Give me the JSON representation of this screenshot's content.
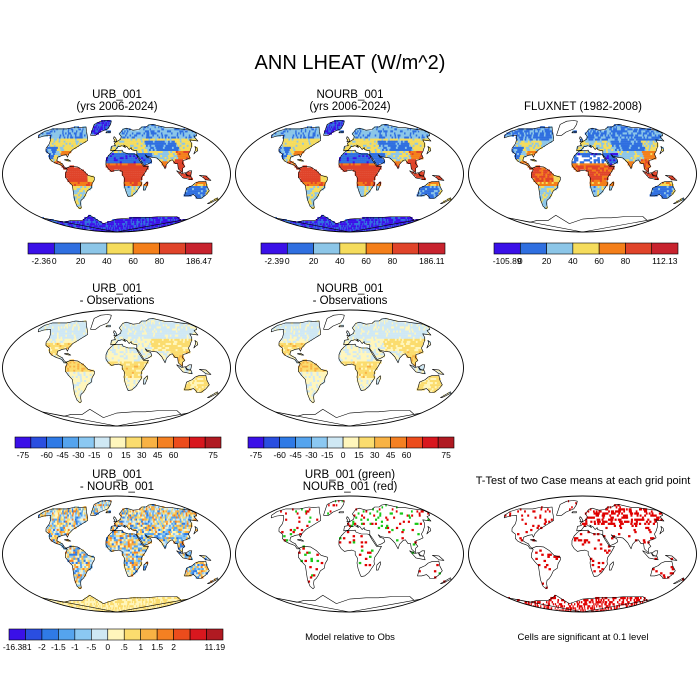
{
  "figure": {
    "title": "ANN LHEAT (W/m^2)"
  },
  "colors": {
    "base": [
      "#3a10e8",
      "#2f6fe0",
      "#8cc6e8",
      "#f5dc5c",
      "#f47f1a",
      "#e0442a",
      "#c8232e"
    ],
    "diff": [
      "#3a10e8",
      "#2a4ee0",
      "#2f7ae6",
      "#55a4ee",
      "#8bc8f2",
      "#cfe8f4",
      "#fff6bc",
      "#fbdc6e",
      "#f8b244",
      "#f48022",
      "#ec4c1c",
      "#d8171e",
      "#b01a22"
    ],
    "ocean": "#ffffff",
    "coast": "#000000",
    "signif": "#e00000",
    "green": "#18c818"
  },
  "chart_data": [
    {
      "type": "heatmap",
      "id": "urb",
      "title_lines": [
        "URB_001",
        "(yrs 2006-2024)"
      ],
      "colorbar": {
        "palette": "base",
        "labels": [
          "-2.36",
          "0",
          "20",
          "40",
          "60",
          "80",
          "186.47"
        ]
      }
    },
    {
      "type": "heatmap",
      "id": "nourb",
      "title_lines": [
        "NOURB_001",
        "(yrs 2006-2024)"
      ],
      "colorbar": {
        "palette": "base",
        "labels": [
          "-2.39",
          "0",
          "20",
          "40",
          "60",
          "80",
          "186.11"
        ]
      }
    },
    {
      "type": "heatmap",
      "id": "fluxnet",
      "title_lines": [
        "FLUXNET (1982-2008)"
      ],
      "colorbar": {
        "palette": "base",
        "labels": [
          "-105.89",
          "0",
          "20",
          "40",
          "60",
          "80",
          "112.13"
        ]
      }
    },
    {
      "type": "heatmap",
      "id": "urb_obs",
      "title_lines": [
        "URB_001",
        "- Observations"
      ],
      "colorbar": {
        "palette": "diff",
        "labels": [
          "-75",
          "-60",
          "-45",
          "-30",
          "-15",
          "0",
          "15",
          "30",
          "45",
          "60",
          "75"
        ]
      }
    },
    {
      "type": "heatmap",
      "id": "nourb_obs",
      "title_lines": [
        "NOURB_001",
        "- Observations"
      ],
      "colorbar": {
        "palette": "diff",
        "labels": [
          "-75",
          "-60",
          "-45",
          "-30",
          "-15",
          "0",
          "15",
          "30",
          "45",
          "60",
          "75"
        ]
      }
    },
    {
      "type": "heatmap",
      "id": "urb_nourb",
      "title_lines": [
        "URB_001",
        "- NOURB_001"
      ],
      "colorbar": {
        "palette": "diff",
        "labels": [
          "-16.381",
          "-2",
          "-1.5",
          "-1",
          "-.5",
          "0",
          ".5",
          "1",
          "1.5",
          "2",
          "11.19"
        ]
      }
    },
    {
      "type": "heatmap",
      "id": "model_rel",
      "title_lines": [
        "URB_001 (green)",
        "NOURB_001 (red)"
      ],
      "note": "Model relative to Obs"
    },
    {
      "type": "heatmap",
      "id": "ttest",
      "title_lines": [
        "T-Test of two Case means at each grid point"
      ],
      "note": "Cells are significant at 0.1 level"
    }
  ]
}
